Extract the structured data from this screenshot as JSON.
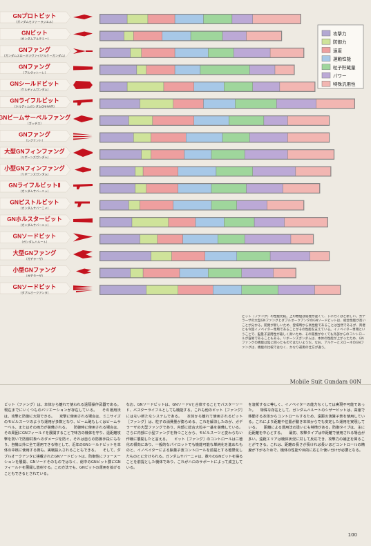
{
  "colors": {
    "attack": "#b3a8d2",
    "defense": "#cfe39a",
    "speed": "#ee9f9f",
    "mobility": "#a7c8e7",
    "particle": "#9fd69c",
    "power": "#bca9d6",
    "special": "#f2b6b2",
    "label_red": "#c4121e",
    "page_bg": "#eeeae2"
  },
  "legend": {
    "items": [
      {
        "label": "攻撃力",
        "color": "attack"
      },
      {
        "label": "防御力",
        "color": "defense"
      },
      {
        "label": "速度",
        "color": "speed"
      },
      {
        "label": "運動性能",
        "color": "mobility"
      },
      {
        "label": "粒子貯蔵量",
        "color": "particle"
      },
      {
        "label": "パワー",
        "color": "power"
      },
      {
        "label": "特殊汎用性",
        "color": "special"
      }
    ]
  },
  "chart_data": {
    "type": "bar",
    "stacked": true,
    "orientation": "horizontal",
    "legend_position": "top-right",
    "grid": false,
    "series_names": [
      "攻撃力",
      "防御力",
      "速度",
      "運動性能",
      "粒子貯蔵量",
      "パワー",
      "特殊汎用性"
    ],
    "categories": [
      {
        "name": "GNプロトビット",
        "sub": "（ガンダムセファーラジエル）",
        "icon": "dagger"
      },
      {
        "name": "GNビット",
        "sub": "（ガンダムアルテミー）",
        "icon": "dagger"
      },
      {
        "name": "GNファング",
        "sub": "（ガンダムスローネツヴァイ/アルケーガンダム）",
        "icon": "arrow"
      },
      {
        "name": "GNファング",
        "sub": "（アルヴァトーレ）",
        "icon": "bar"
      },
      {
        "name": "GNシールドビット",
        "sub": "（ケルディムガンダム）",
        "icon": "shield"
      },
      {
        "name": "GNライフルビット",
        "sub": "（ケルディムガンダムGNHW/R）",
        "icon": "rifle"
      },
      {
        "name": "GNビームサーベルファング",
        "sub": "（ガッデス）",
        "icon": "fang"
      },
      {
        "name": "GNファング",
        "sub": "（レグナント）",
        "icon": "claws"
      },
      {
        "name": "大型GNフィンファング",
        "sub": "（リボーンズガンダム）",
        "icon": "fin"
      },
      {
        "name": "小型GNフィンファング",
        "sub": "（リボーンズガンダム）",
        "icon": "smallfin"
      },
      {
        "name": "GNライフルビットⅡ",
        "sub": "（ガンダムサバーニャ）",
        "icon": "rifle2"
      },
      {
        "name": "GNピストルビット",
        "sub": "（ガンダムサバーニャ）",
        "icon": "pistol"
      },
      {
        "name": "GNホルスタービット",
        "sub": "（ガンダムサバーニャ）",
        "icon": "holster"
      },
      {
        "name": "GNソードビット",
        "sub": "（ガンダムハルート）",
        "icon": "chevron"
      },
      {
        "name": "大型GNファング",
        "sub": "（ガデラーザ）",
        "icon": "bigfang"
      },
      {
        "name": "小型GNファング",
        "sub": "（ガデラーザ）",
        "icon": "smallfang"
      },
      {
        "name": "GNソードビット",
        "sub": "（ダブルオークアンタ）",
        "icon": "swords"
      }
    ],
    "values": [
      [
        3.4,
        2.6,
        3.4,
        3.6,
        3.6,
        2.6,
        6.0
      ],
      [
        3.0,
        1.2,
        3.6,
        3.6,
        4.0,
        3.0,
        4.4
      ],
      [
        3.8,
        1.4,
        4.2,
        4.2,
        3.2,
        4.6,
        4.2
      ],
      [
        4.6,
        1.2,
        3.6,
        3.2,
        6.2,
        3.2,
        2.4
      ],
      [
        3.4,
        4.6,
        3.8,
        3.8,
        3.6,
        3.4,
        4.4
      ],
      [
        5.0,
        4.2,
        3.8,
        4.0,
        5.2,
        5.0,
        4.8
      ],
      [
        3.6,
        3.0,
        5.2,
        4.4,
        4.4,
        3.0,
        5.2
      ],
      [
        4.2,
        2.2,
        4.4,
        4.6,
        3.4,
        4.8,
        5.2
      ],
      [
        5.2,
        1.2,
        4.2,
        3.4,
        4.2,
        5.4,
        5.8
      ],
      [
        4.4,
        1.0,
        4.4,
        4.8,
        4.6,
        5.4,
        4.4
      ],
      [
        4.4,
        1.4,
        4.0,
        4.2,
        4.4,
        4.6,
        4.6
      ],
      [
        3.6,
        1.4,
        4.2,
        4.8,
        3.2,
        3.8,
        4.6
      ],
      [
        4.0,
        4.6,
        3.4,
        3.6,
        3.8,
        3.8,
        5.4
      ],
      [
        5.0,
        2.2,
        3.2,
        4.4,
        3.4,
        5.8,
        2.8
      ],
      [
        6.4,
        2.6,
        4.2,
        4.0,
        4.2,
        5.0,
        2.4
      ],
      [
        3.8,
        1.6,
        4.6,
        3.6,
        4.2,
        4.0,
        2.8
      ],
      [
        5.8,
        4.0,
        4.4,
        3.6,
        4.6,
        4.6,
        3.2
      ]
    ]
  },
  "caption": "ビット（ファング）の性能比較。上の数値は開発が遅くて、下に行くほど新しい。ガデラーザの大型GNファングとダブルオークアンタのGNソードビットは、総合性能が高いことが分かる。開発が新しいため、登場時から高性能であることは当然であるが、両者とも今回イノベイター専用であることがその性能を支えている。イノベイター専用ということで、脳量子波用性が著しく高いため、その開発がなくても外部からのコントロールが容易であることもある。リボーンズガンダムは、本体の性能が上がったため、GNファングの機能は陰に回ったものではないようだ。なお、アルケーとスローネのGNファングは、機能の比較ではなく、かなり運用の仕方が違う。",
  "book_title": "Mobile Suit Gundam 00N",
  "body_columns": [
    "ビット（ファング）は、本体から離れて使われる遠隔操作武器である。現在までにいくつものバリエーションが存在している。\n　その運用法は、攻撃と防御に大別できる。\n　攻撃に使用される場合は、ミニサイズのモビルスーツのような運用が多数となり、ビーム砲もしくはビームサーベル、またはその両方が装備される。\n　防御時に使用される場合は、その周囲にGNフィールドを展開することで味方の機体を守り、遠距離攻撃を防いで防御対象へのダメージを防ぐ。それは自らの防御手段にもなり、自機以外に全て運用できる物として、近年のGNシールドビットを本体の中核に使用する例も、実戦投入されることもできる。\n　そして、ダブルオークアンタに搭載されたGNソードビットは、防御性にフォーメーションを展開、GNソードそのものではなく、総中のGNビット群にGNフィールドを展開し放射する。この方法でも、GNビットの運用を拡げることもできるとされている。",
    "なお、GNソードビットは、GNソードVと合体することでバスターソード、バスターライフルとしても機能する。これも他のビット［ファング］にはない新たなシステムである。\n　本体から離れて使用されるビット［ファング］は、粒子の消費量が膨らめる、これを解決したのが、ガデラーザの大型ファングであり、内部に総合大粒子一基を装備している。さらに内部に小型ファングを持つことから、モビルスーツと変わらない作戦に展開したと言える。\n　ビット［ファング］のコントロールは二極化の傾向にあり、一般的なパイロットでも機能可能な単純化を進めたものと、イノベイターによる脳量子波コントロールを前提とする極限化したものとに分けられる。ガンダムサバーニャは、数々のGNビットを操ることを前提とした機体であり、これがハロのサポートによって成立している。",
    "を凌駕するに等しく、イノベイターの能力なくしては実現不可能であった。\n　特殊な存在として、ガンダムハルートのシザービットは、高速で移動する本体からコントロールするため、遠距の演算子表を使用している。これにより距離や位置が動き本体からでも安定した運用を実現している。\n　距離による運用法の違いにも特徴がある。防御タイプは、主に近距離を中心とする。\n　最初、攻撃タイプは中距離で使用される場合が多い。遠距エリアは機体状況に対して反応でき、攻撃力の補正を図ることができる。これは、距離の長さが長ければ長いほどコントロールの精度が下がるためで、機体の性能や目的に応じた使い分けが必要となる。"
  ],
  "page_number": "100"
}
